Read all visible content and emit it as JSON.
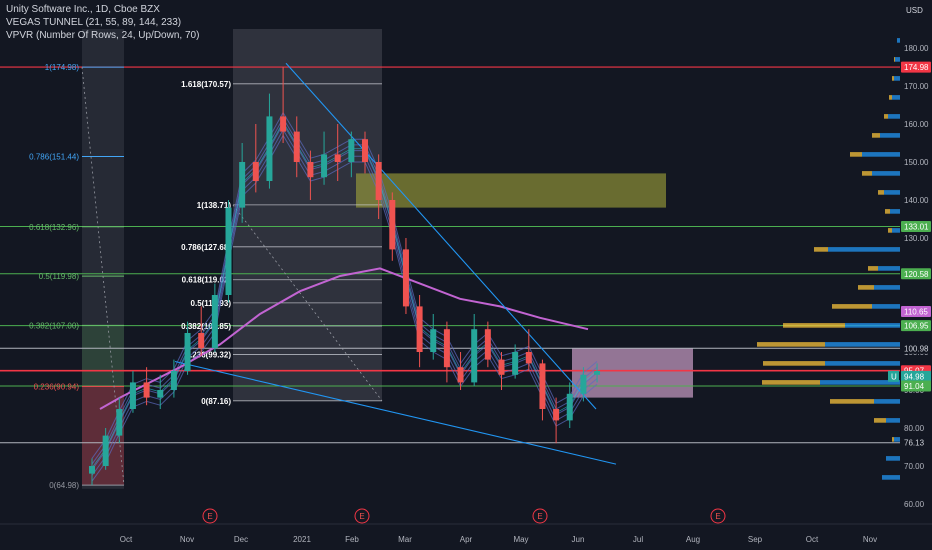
{
  "header": {
    "symbol": "Unity Software Inc., 1D, Cboe BZX",
    "indicator1": "VEGAS TUNNEL (21, 55, 89, 144, 233)",
    "indicator2": "VPVR (Number Of Rows, 24, Up/Down, 70)"
  },
  "colors": {
    "background": "#131722",
    "candle_up": "#26a69a",
    "candle_down": "#ef5350",
    "trendline": "#2196f3",
    "ma_line": "#c264d2",
    "fib_line": "#d1d4dc",
    "level_green": "#4caf50",
    "level_red": "#f23645"
  },
  "axis": {
    "currency": "USD",
    "price_ticks": [
      "180.00",
      "170.00",
      "160.00",
      "150.00",
      "140.00",
      "130.00",
      "120.00",
      "110.00",
      "100.00",
      "90.00",
      "80.00",
      "70.00",
      "60.00"
    ],
    "time_ticks": [
      "Oct",
      "Nov",
      "Dec",
      "2021",
      "Feb",
      "Mar",
      "Apr",
      "May",
      "Jun",
      "Jul",
      "Aug",
      "Sep",
      "Oct",
      "Nov"
    ]
  },
  "fib_left": [
    {
      "label": "1(174.98)",
      "price": 174.98
    },
    {
      "label": "0.786(151.44)",
      "price": 151.44
    },
    {
      "label": "0.618(132.96)",
      "price": 132.96
    },
    {
      "label": "0.5(119.98)",
      "price": 119.98
    },
    {
      "label": "0.382(107.00)",
      "price": 107.0
    },
    {
      "label": "0.236(90.94)",
      "price": 90.94
    },
    {
      "label": "0(64.98)",
      "price": 64.98
    }
  ],
  "fib_right": [
    {
      "label": "1.618(170.57)",
      "price": 170.57
    },
    {
      "label": "1(138.71)",
      "price": 138.71
    },
    {
      "label": "0.786(127.68)",
      "price": 127.68
    },
    {
      "label": "0.618(119.02)",
      "price": 119.02
    },
    {
      "label": "0.5(112.93)",
      "price": 112.93
    },
    {
      "label": "0.382(106.85)",
      "price": 106.85
    },
    {
      "label": "0.236(99.32)",
      "price": 99.32
    },
    {
      "label": "0(87.16)",
      "price": 87.16
    }
  ],
  "price_labels": [
    {
      "text": "174.98",
      "price": 174.98,
      "bg": "#f23645",
      "fg": "#ffffff"
    },
    {
      "text": "133.01",
      "price": 133.01,
      "bg": "#4caf50",
      "fg": "#ffffff"
    },
    {
      "text": "120.58",
      "price": 120.58,
      "bg": "#4caf50",
      "fg": "#ffffff"
    },
    {
      "text": "110.65",
      "price": 110.65,
      "bg": "#c264d2",
      "fg": "#ffffff"
    },
    {
      "text": "106.95",
      "price": 106.95,
      "bg": "#4caf50",
      "fg": "#ffffff"
    },
    {
      "text": "100.98",
      "price": 100.98,
      "bg": "#131722",
      "fg": "#d1d4dc"
    },
    {
      "text": "95.07",
      "price": 95.07,
      "bg": "#f23645",
      "fg": "#ffffff"
    },
    {
      "text": "94.98",
      "price": 93.6,
      "bg": "#26a69a",
      "fg": "#ffffff"
    },
    {
      "text": "91.04",
      "price": 91.04,
      "bg": "#4caf50",
      "fg": "#ffffff"
    },
    {
      "text": "76.13",
      "price": 76.13,
      "bg": "#131722",
      "fg": "#d1d4dc"
    }
  ],
  "earnings_marker": "E",
  "symbol_badge": "U",
  "chart_data": {
    "type": "candlestick",
    "ohlc": [
      {
        "date": "2020-09-18",
        "o": 68,
        "h": 72,
        "l": 65,
        "c": 70
      },
      {
        "date": "2020-09-25",
        "o": 70,
        "h": 80,
        "l": 69,
        "c": 78
      },
      {
        "date": "2020-10-02",
        "o": 78,
        "h": 88,
        "l": 76,
        "c": 85
      },
      {
        "date": "2020-10-09",
        "o": 85,
        "h": 95,
        "l": 84,
        "c": 92
      },
      {
        "date": "2020-10-16",
        "o": 92,
        "h": 96,
        "l": 86,
        "c": 88
      },
      {
        "date": "2020-10-23",
        "o": 88,
        "h": 94,
        "l": 85,
        "c": 90
      },
      {
        "date": "2020-10-30",
        "o": 90,
        "h": 98,
        "l": 88,
        "c": 95
      },
      {
        "date": "2020-11-06",
        "o": 95,
        "h": 108,
        "l": 94,
        "c": 105
      },
      {
        "date": "2020-11-13",
        "o": 105,
        "h": 112,
        "l": 99,
        "c": 101
      },
      {
        "date": "2020-11-20",
        "o": 101,
        "h": 118,
        "l": 100,
        "c": 115
      },
      {
        "date": "2020-11-27",
        "o": 115,
        "h": 140,
        "l": 113,
        "c": 138
      },
      {
        "date": "2020-12-04",
        "o": 138,
        "h": 155,
        "l": 134,
        "c": 150
      },
      {
        "date": "2020-12-11",
        "o": 150,
        "h": 160,
        "l": 142,
        "c": 145
      },
      {
        "date": "2020-12-18",
        "o": 145,
        "h": 168,
        "l": 143,
        "c": 162
      },
      {
        "date": "2020-12-25",
        "o": 162,
        "h": 175,
        "l": 155,
        "c": 158
      },
      {
        "date": "2021-01-01",
        "o": 158,
        "h": 162,
        "l": 146,
        "c": 150
      },
      {
        "date": "2021-01-08",
        "o": 150,
        "h": 153,
        "l": 140,
        "c": 146
      },
      {
        "date": "2021-01-15",
        "o": 146,
        "h": 158,
        "l": 144,
        "c": 152
      },
      {
        "date": "2021-01-22",
        "o": 152,
        "h": 160,
        "l": 145,
        "c": 150
      },
      {
        "date": "2021-01-29",
        "o": 150,
        "h": 158,
        "l": 146,
        "c": 156
      },
      {
        "date": "2021-02-05",
        "o": 156,
        "h": 158,
        "l": 147,
        "c": 150
      },
      {
        "date": "2021-02-12",
        "o": 150,
        "h": 152,
        "l": 135,
        "c": 140
      },
      {
        "date": "2021-02-19",
        "o": 140,
        "h": 142,
        "l": 124,
        "c": 127
      },
      {
        "date": "2021-02-26",
        "o": 127,
        "h": 130,
        "l": 110,
        "c": 112
      },
      {
        "date": "2021-03-05",
        "o": 112,
        "h": 115,
        "l": 96,
        "c": 100
      },
      {
        "date": "2021-03-12",
        "o": 100,
        "h": 110,
        "l": 98,
        "c": 106
      },
      {
        "date": "2021-03-19",
        "o": 106,
        "h": 108,
        "l": 92,
        "c": 96
      },
      {
        "date": "2021-03-26",
        "o": 96,
        "h": 100,
        "l": 90,
        "c": 92
      },
      {
        "date": "2021-04-02",
        "o": 92,
        "h": 110,
        "l": 91,
        "c": 106
      },
      {
        "date": "2021-04-09",
        "o": 106,
        "h": 108,
        "l": 96,
        "c": 98
      },
      {
        "date": "2021-04-16",
        "o": 98,
        "h": 100,
        "l": 90,
        "c": 94
      },
      {
        "date": "2021-04-23",
        "o": 94,
        "h": 102,
        "l": 93,
        "c": 100
      },
      {
        "date": "2021-04-30",
        "o": 100,
        "h": 106,
        "l": 95,
        "c": 97
      },
      {
        "date": "2021-05-07",
        "o": 97,
        "h": 98,
        "l": 82,
        "c": 85
      },
      {
        "date": "2021-05-14",
        "o": 85,
        "h": 88,
        "l": 76,
        "c": 82
      },
      {
        "date": "2021-05-21",
        "o": 82,
        "h": 92,
        "l": 80,
        "c": 89
      },
      {
        "date": "2021-05-28",
        "o": 89,
        "h": 96,
        "l": 87,
        "c": 94
      },
      {
        "date": "2021-06-04",
        "o": 94,
        "h": 97,
        "l": 92,
        "c": 95
      }
    ],
    "ylim": [
      55,
      186
    ],
    "y_scale": "linear",
    "grid": false,
    "vpvr": [
      {
        "price": 182,
        "up": 0,
        "down": 3
      },
      {
        "price": 177,
        "up": 1,
        "down": 5
      },
      {
        "price": 172,
        "up": 2,
        "down": 6
      },
      {
        "price": 167,
        "up": 3,
        "down": 8
      },
      {
        "price": 162,
        "up": 4,
        "down": 12
      },
      {
        "price": 157,
        "up": 8,
        "down": 20
      },
      {
        "price": 152,
        "up": 12,
        "down": 38
      },
      {
        "price": 147,
        "up": 10,
        "down": 28
      },
      {
        "price": 142,
        "up": 6,
        "down": 16
      },
      {
        "price": 137,
        "up": 5,
        "down": 10
      },
      {
        "price": 132,
        "up": 4,
        "down": 8
      },
      {
        "price": 127,
        "up": 14,
        "down": 72
      },
      {
        "price": 122,
        "up": 10,
        "down": 22
      },
      {
        "price": 117,
        "up": 16,
        "down": 26
      },
      {
        "price": 112,
        "up": 40,
        "down": 28
      },
      {
        "price": 107,
        "up": 62,
        "down": 55
      },
      {
        "price": 102,
        "up": 68,
        "down": 75
      },
      {
        "price": 97,
        "up": 62,
        "down": 75
      },
      {
        "price": 92,
        "up": 58,
        "down": 80
      },
      {
        "price": 87,
        "up": 44,
        "down": 26
      },
      {
        "price": 82,
        "up": 12,
        "down": 14
      },
      {
        "price": 77,
        "up": 2,
        "down": 6
      },
      {
        "price": 72,
        "up": 0,
        "down": 14
      },
      {
        "price": 67,
        "up": 0,
        "down": 18
      }
    ]
  }
}
